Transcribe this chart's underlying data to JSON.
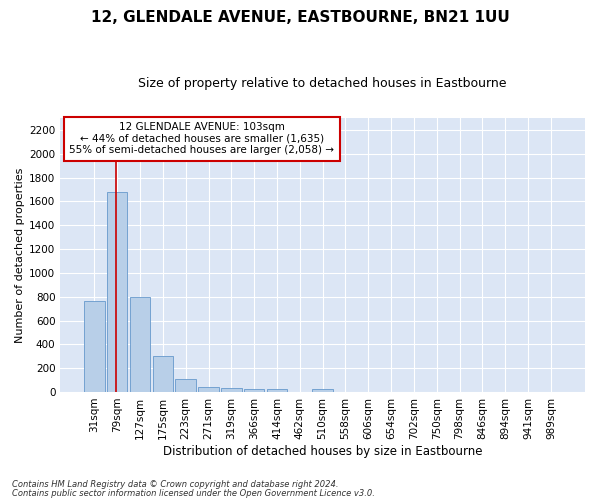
{
  "title": "12, GLENDALE AVENUE, EASTBOURNE, BN21 1UU",
  "subtitle": "Size of property relative to detached houses in Eastbourne",
  "xlabel": "Distribution of detached houses by size in Eastbourne",
  "ylabel": "Number of detached properties",
  "footnote1": "Contains HM Land Registry data © Crown copyright and database right 2024.",
  "footnote2": "Contains public sector information licensed under the Open Government Licence v3.0.",
  "categories": [
    "31sqm",
    "79sqm",
    "127sqm",
    "175sqm",
    "223sqm",
    "271sqm",
    "319sqm",
    "366sqm",
    "414sqm",
    "462sqm",
    "510sqm",
    "558sqm",
    "606sqm",
    "654sqm",
    "702sqm",
    "750sqm",
    "798sqm",
    "846sqm",
    "894sqm",
    "941sqm",
    "989sqm"
  ],
  "values": [
    760,
    1680,
    800,
    300,
    110,
    45,
    32,
    28,
    22,
    0,
    22,
    0,
    0,
    0,
    0,
    0,
    0,
    0,
    0,
    0,
    0
  ],
  "bar_color": "#b8cfe8",
  "bar_edgecolor": "#6699cc",
  "vline_x_idx": 1,
  "vline_color": "#cc0000",
  "annotation_line1": "12 GLENDALE AVENUE: 103sqm",
  "annotation_line2": "← 44% of detached houses are smaller (1,635)",
  "annotation_line3": "55% of semi-detached houses are larger (2,058) →",
  "annotation_box_color": "#cc0000",
  "ylim_max": 2300,
  "yticks": [
    0,
    200,
    400,
    600,
    800,
    1000,
    1200,
    1400,
    1600,
    1800,
    2000,
    2200
  ],
  "bg_color": "#dce6f5",
  "grid_color": "#ffffff",
  "title_fontsize": 11,
  "subtitle_fontsize": 9,
  "ylabel_fontsize": 8,
  "xlabel_fontsize": 8.5,
  "tick_fontsize": 7.5,
  "annot_fontsize": 7.5,
  "footnote_fontsize": 6
}
